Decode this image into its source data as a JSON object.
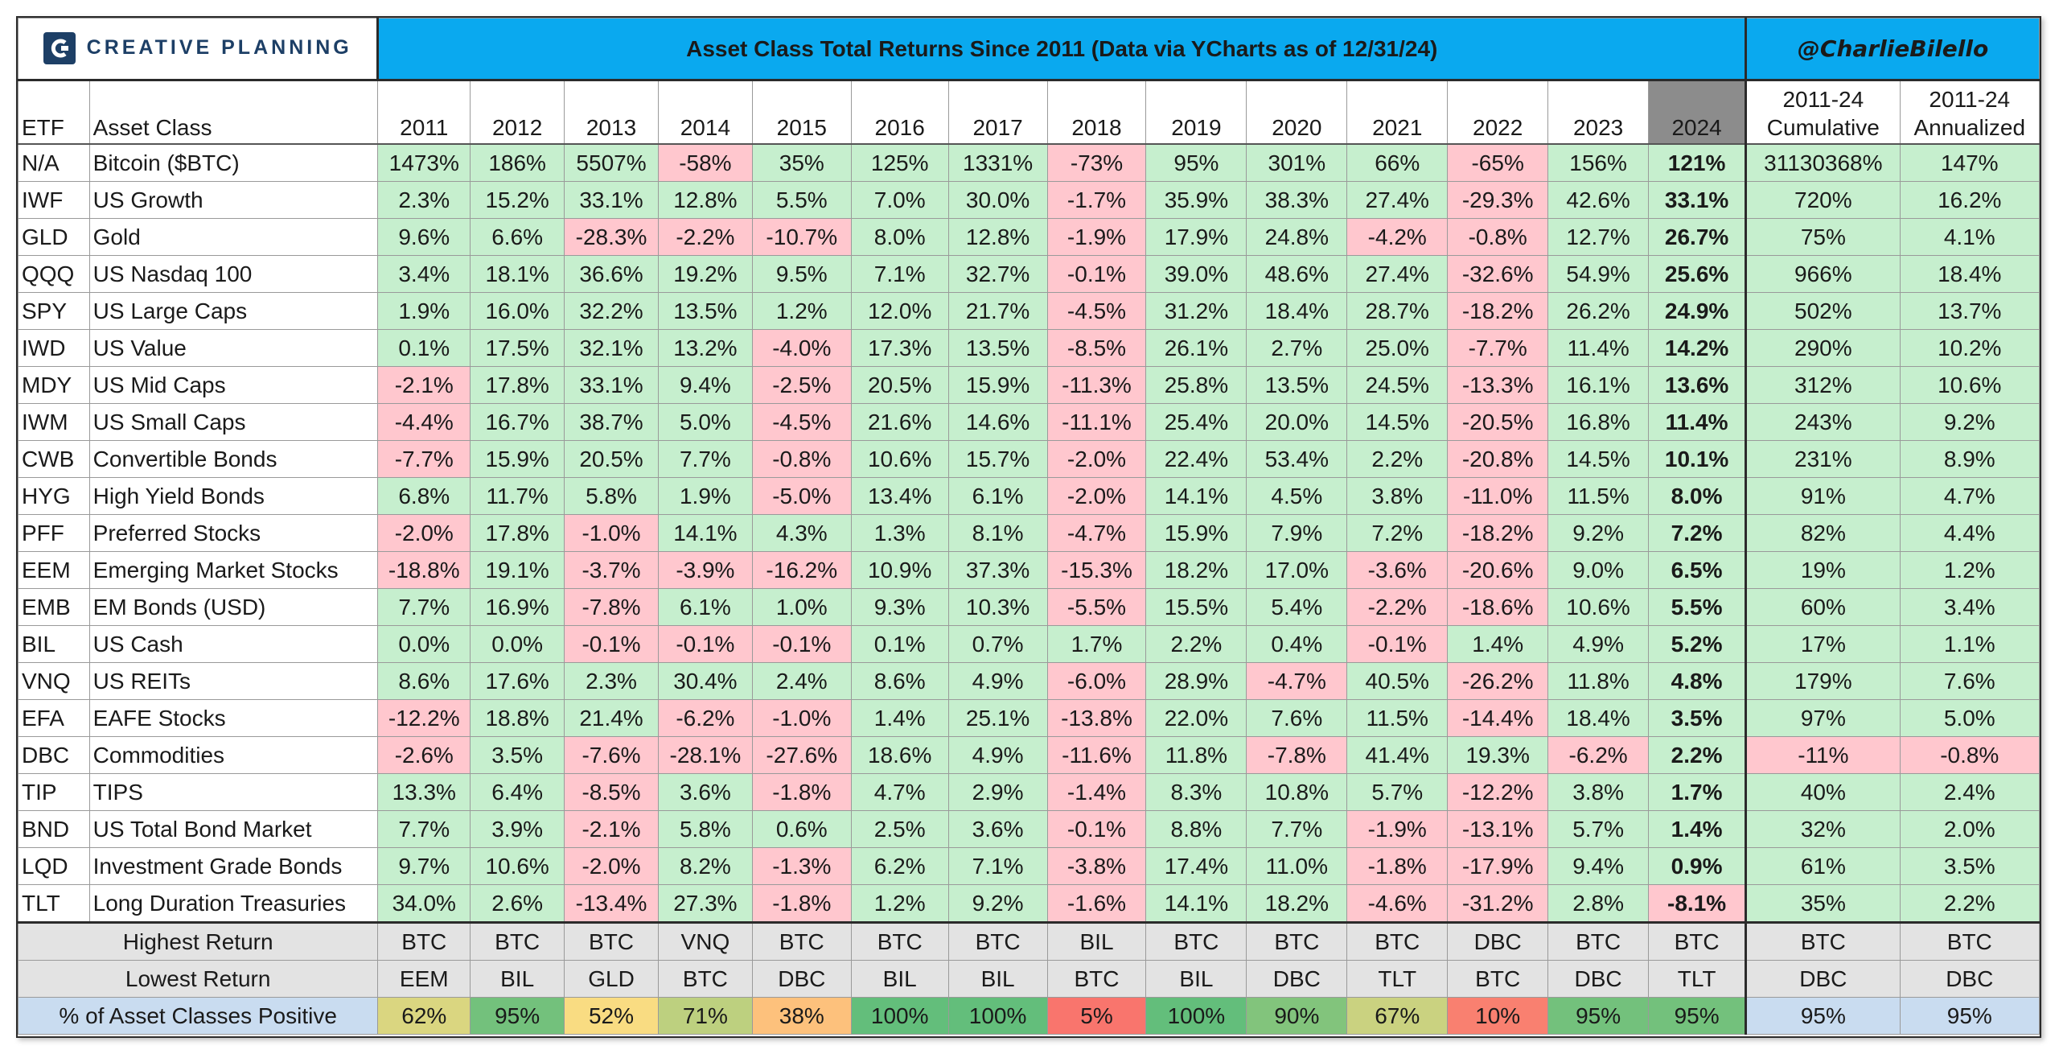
{
  "banner": {
    "logo_text": "CREATIVE PLANNING",
    "title": "Asset Class Total Returns Since 2011 (Data via YCharts as of 12/31/24)",
    "handle": "@CharlieBilello"
  },
  "headers": {
    "etf": "ETF",
    "asset": "Asset Class",
    "years": [
      "2011",
      "2012",
      "2013",
      "2014",
      "2015",
      "2016",
      "2017",
      "2018",
      "2019",
      "2020",
      "2021",
      "2022",
      "2023",
      "2024"
    ],
    "cumulative": [
      "2011-24",
      "Cumulative"
    ],
    "annualized": [
      "2011-24",
      "Annualized"
    ]
  },
  "rows": [
    {
      "etf": "N/A",
      "name": "Bitcoin ($BTC)",
      "values": [
        "1473%",
        "186%",
        "5507%",
        "-58%",
        "35%",
        "125%",
        "1331%",
        "-73%",
        "95%",
        "301%",
        "66%",
        "-65%",
        "156%",
        "121%"
      ],
      "cumulative": "31130368%",
      "annualized": "147%"
    },
    {
      "etf": "IWF",
      "name": "US Growth",
      "values": [
        "2.3%",
        "15.2%",
        "33.1%",
        "12.8%",
        "5.5%",
        "7.0%",
        "30.0%",
        "-1.7%",
        "35.9%",
        "38.3%",
        "27.4%",
        "-29.3%",
        "42.6%",
        "33.1%"
      ],
      "cumulative": "720%",
      "annualized": "16.2%"
    },
    {
      "etf": "GLD",
      "name": "Gold",
      "values": [
        "9.6%",
        "6.6%",
        "-28.3%",
        "-2.2%",
        "-10.7%",
        "8.0%",
        "12.8%",
        "-1.9%",
        "17.9%",
        "24.8%",
        "-4.2%",
        "-0.8%",
        "12.7%",
        "26.7%"
      ],
      "cumulative": "75%",
      "annualized": "4.1%"
    },
    {
      "etf": "QQQ",
      "name": "US Nasdaq 100",
      "values": [
        "3.4%",
        "18.1%",
        "36.6%",
        "19.2%",
        "9.5%",
        "7.1%",
        "32.7%",
        "-0.1%",
        "39.0%",
        "48.6%",
        "27.4%",
        "-32.6%",
        "54.9%",
        "25.6%"
      ],
      "cumulative": "966%",
      "annualized": "18.4%"
    },
    {
      "etf": "SPY",
      "name": "US Large Caps",
      "values": [
        "1.9%",
        "16.0%",
        "32.2%",
        "13.5%",
        "1.2%",
        "12.0%",
        "21.7%",
        "-4.5%",
        "31.2%",
        "18.4%",
        "28.7%",
        "-18.2%",
        "26.2%",
        "24.9%"
      ],
      "cumulative": "502%",
      "annualized": "13.7%"
    },
    {
      "etf": "IWD",
      "name": "US Value",
      "values": [
        "0.1%",
        "17.5%",
        "32.1%",
        "13.2%",
        "-4.0%",
        "17.3%",
        "13.5%",
        "-8.5%",
        "26.1%",
        "2.7%",
        "25.0%",
        "-7.7%",
        "11.4%",
        "14.2%"
      ],
      "cumulative": "290%",
      "annualized": "10.2%"
    },
    {
      "etf": "MDY",
      "name": "US Mid Caps",
      "values": [
        "-2.1%",
        "17.8%",
        "33.1%",
        "9.4%",
        "-2.5%",
        "20.5%",
        "15.9%",
        "-11.3%",
        "25.8%",
        "13.5%",
        "24.5%",
        "-13.3%",
        "16.1%",
        "13.6%"
      ],
      "cumulative": "312%",
      "annualized": "10.6%"
    },
    {
      "etf": "IWM",
      "name": "US Small Caps",
      "values": [
        "-4.4%",
        "16.7%",
        "38.7%",
        "5.0%",
        "-4.5%",
        "21.6%",
        "14.6%",
        "-11.1%",
        "25.4%",
        "20.0%",
        "14.5%",
        "-20.5%",
        "16.8%",
        "11.4%"
      ],
      "cumulative": "243%",
      "annualized": "9.2%"
    },
    {
      "etf": "CWB",
      "name": "Convertible Bonds",
      "values": [
        "-7.7%",
        "15.9%",
        "20.5%",
        "7.7%",
        "-0.8%",
        "10.6%",
        "15.7%",
        "-2.0%",
        "22.4%",
        "53.4%",
        "2.2%",
        "-20.8%",
        "14.5%",
        "10.1%"
      ],
      "cumulative": "231%",
      "annualized": "8.9%"
    },
    {
      "etf": "HYG",
      "name": "High Yield Bonds",
      "values": [
        "6.8%",
        "11.7%",
        "5.8%",
        "1.9%",
        "-5.0%",
        "13.4%",
        "6.1%",
        "-2.0%",
        "14.1%",
        "4.5%",
        "3.8%",
        "-11.0%",
        "11.5%",
        "8.0%"
      ],
      "cumulative": "91%",
      "annualized": "4.7%"
    },
    {
      "etf": "PFF",
      "name": "Preferred Stocks",
      "values": [
        "-2.0%",
        "17.8%",
        "-1.0%",
        "14.1%",
        "4.3%",
        "1.3%",
        "8.1%",
        "-4.7%",
        "15.9%",
        "7.9%",
        "7.2%",
        "-18.2%",
        "9.2%",
        "7.2%"
      ],
      "cumulative": "82%",
      "annualized": "4.4%"
    },
    {
      "etf": "EEM",
      "name": "Emerging Market Stocks",
      "values": [
        "-18.8%",
        "19.1%",
        "-3.7%",
        "-3.9%",
        "-16.2%",
        "10.9%",
        "37.3%",
        "-15.3%",
        "18.2%",
        "17.0%",
        "-3.6%",
        "-20.6%",
        "9.0%",
        "6.5%"
      ],
      "cumulative": "19%",
      "annualized": "1.2%"
    },
    {
      "etf": "EMB",
      "name": "EM Bonds (USD)",
      "values": [
        "7.7%",
        "16.9%",
        "-7.8%",
        "6.1%",
        "1.0%",
        "9.3%",
        "10.3%",
        "-5.5%",
        "15.5%",
        "5.4%",
        "-2.2%",
        "-18.6%",
        "10.6%",
        "5.5%"
      ],
      "cumulative": "60%",
      "annualized": "3.4%"
    },
    {
      "etf": "BIL",
      "name": "US Cash",
      "values": [
        "0.0%",
        "0.0%",
        "-0.1%",
        "-0.1%",
        "-0.1%",
        "0.1%",
        "0.7%",
        "1.7%",
        "2.2%",
        "0.4%",
        "-0.1%",
        "1.4%",
        "4.9%",
        "5.2%"
      ],
      "cumulative": "17%",
      "annualized": "1.1%"
    },
    {
      "etf": "VNQ",
      "name": "US REITs",
      "values": [
        "8.6%",
        "17.6%",
        "2.3%",
        "30.4%",
        "2.4%",
        "8.6%",
        "4.9%",
        "-6.0%",
        "28.9%",
        "-4.7%",
        "40.5%",
        "-26.2%",
        "11.8%",
        "4.8%"
      ],
      "cumulative": "179%",
      "annualized": "7.6%"
    },
    {
      "etf": "EFA",
      "name": "EAFE Stocks",
      "values": [
        "-12.2%",
        "18.8%",
        "21.4%",
        "-6.2%",
        "-1.0%",
        "1.4%",
        "25.1%",
        "-13.8%",
        "22.0%",
        "7.6%",
        "11.5%",
        "-14.4%",
        "18.4%",
        "3.5%"
      ],
      "cumulative": "97%",
      "annualized": "5.0%"
    },
    {
      "etf": "DBC",
      "name": "Commodities",
      "values": [
        "-2.6%",
        "3.5%",
        "-7.6%",
        "-28.1%",
        "-27.6%",
        "18.6%",
        "4.9%",
        "-11.6%",
        "11.8%",
        "-7.8%",
        "41.4%",
        "19.3%",
        "-6.2%",
        "2.2%"
      ],
      "cumulative": "-11%",
      "annualized": "-0.8%"
    },
    {
      "etf": "TIP",
      "name": "TIPS",
      "values": [
        "13.3%",
        "6.4%",
        "-8.5%",
        "3.6%",
        "-1.8%",
        "4.7%",
        "2.9%",
        "-1.4%",
        "8.3%",
        "10.8%",
        "5.7%",
        "-12.2%",
        "3.8%",
        "1.7%"
      ],
      "cumulative": "40%",
      "annualized": "2.4%"
    },
    {
      "etf": "BND",
      "name": "US Total Bond Market",
      "values": [
        "7.7%",
        "3.9%",
        "-2.1%",
        "5.8%",
        "0.6%",
        "2.5%",
        "3.6%",
        "-0.1%",
        "8.8%",
        "7.7%",
        "-1.9%",
        "-13.1%",
        "5.7%",
        "1.4%"
      ],
      "cumulative": "32%",
      "annualized": "2.0%"
    },
    {
      "etf": "LQD",
      "name": "Investment Grade Bonds",
      "values": [
        "9.7%",
        "10.6%",
        "-2.0%",
        "8.2%",
        "-1.3%",
        "6.2%",
        "7.1%",
        "-3.8%",
        "17.4%",
        "11.0%",
        "-1.8%",
        "-17.9%",
        "9.4%",
        "0.9%"
      ],
      "cumulative": "61%",
      "annualized": "3.5%"
    },
    {
      "etf": "TLT",
      "name": "Long Duration Treasuries",
      "values": [
        "34.0%",
        "2.6%",
        "-13.4%",
        "27.3%",
        "-1.8%",
        "1.2%",
        "9.2%",
        "-1.6%",
        "14.1%",
        "18.2%",
        "-4.6%",
        "-31.2%",
        "2.8%",
        "-8.1%"
      ],
      "cumulative": "35%",
      "annualized": "2.2%"
    }
  ],
  "summary": {
    "highest": {
      "label": "Highest Return",
      "values": [
        "BTC",
        "BTC",
        "BTC",
        "VNQ",
        "BTC",
        "BTC",
        "BTC",
        "BIL",
        "BTC",
        "BTC",
        "BTC",
        "DBC",
        "BTC",
        "BTC"
      ],
      "cumulative": "BTC",
      "annualized": "BTC"
    },
    "lowest": {
      "label": "Lowest Return",
      "values": [
        "EEM",
        "BIL",
        "GLD",
        "BTC",
        "DBC",
        "BIL",
        "BIL",
        "BTC",
        "BIL",
        "DBC",
        "TLT",
        "BTC",
        "DBC",
        "TLT"
      ],
      "cumulative": "DBC",
      "annualized": "DBC"
    },
    "positive": {
      "label": "% of Asset Classes Positive",
      "values": [
        "62%",
        "95%",
        "52%",
        "71%",
        "38%",
        "100%",
        "100%",
        "5%",
        "100%",
        "90%",
        "67%",
        "10%",
        "95%",
        "95%"
      ],
      "cumulative": "95%",
      "annualized": "95%"
    }
  },
  "colors": {
    "positive_cell": "#c6efce",
    "negative_cell": "#ffc7ce",
    "banner": "#0aa9ef",
    "highlight_header": "#8c8c8c",
    "summary_bg": "#e3e3e3",
    "pct_label_bg": "#c9dcf0"
  },
  "icons": {
    "logo": "creative-planning-c-icon"
  }
}
